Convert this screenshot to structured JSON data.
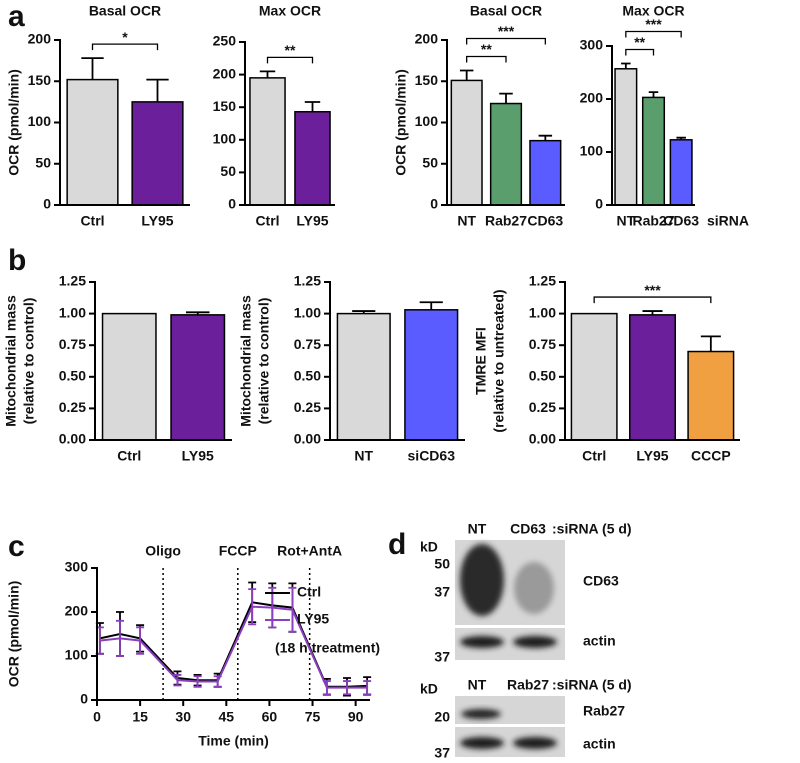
{
  "panel_labels": [
    "a",
    "b",
    "c",
    "d"
  ],
  "chart_data": [
    {
      "type": "bar",
      "title": "Basal OCR",
      "ylabel": "OCR (pmol/min)",
      "categories": [
        "Ctrl",
        "LY95"
      ],
      "values": [
        152,
        125
      ],
      "errors": [
        26,
        27
      ],
      "colors": [
        "#d9d9d9",
        "#6b1f9a"
      ],
      "label_colors": [
        "#111111",
        "#6b1f9a"
      ],
      "ylim": [
        0,
        200
      ],
      "yticks": [
        0,
        50,
        100,
        150,
        200
      ],
      "significance": [
        {
          "text": "*",
          "between": [
            "Ctrl",
            "LY95"
          ]
        }
      ]
    },
    {
      "type": "bar",
      "title": "Max OCR",
      "categories": [
        "Ctrl",
        "LY95"
      ],
      "values": [
        195,
        143
      ],
      "errors": [
        10,
        15
      ],
      "colors": [
        "#d9d9d9",
        "#6b1f9a"
      ],
      "label_colors": [
        "#111111",
        "#6b1f9a"
      ],
      "ylim": [
        0,
        250
      ],
      "yticks": [
        0,
        50,
        100,
        150,
        200,
        250
      ],
      "significance": [
        {
          "text": "**",
          "between": [
            "Ctrl",
            "LY95"
          ]
        }
      ]
    },
    {
      "type": "bar",
      "title": "Basal OCR",
      "ylabel": "OCR (pmol/min)",
      "categories": [
        "NT",
        "Rab27",
        "CD63"
      ],
      "values": [
        151,
        123,
        78
      ],
      "errors": [
        12,
        12,
        6
      ],
      "colors": [
        "#d9d9d9",
        "#5a9e6e",
        "#5a5cff"
      ],
      "label_colors": [
        "#111111",
        "#5a9e6e",
        "#5a5cc8"
      ],
      "ylim": [
        0,
        200
      ],
      "yticks": [
        0,
        50,
        100,
        150,
        200
      ],
      "significance": [
        {
          "text": "**",
          "between": [
            "NT",
            "Rab27"
          ]
        },
        {
          "text": "***",
          "between": [
            "NT",
            "CD63"
          ]
        }
      ]
    },
    {
      "type": "bar",
      "title": "Max OCR",
      "xlabel": "siRNA",
      "categories": [
        "NT",
        "Rab27",
        "CD63"
      ],
      "values": [
        257,
        203,
        123
      ],
      "errors": [
        10,
        10,
        4
      ],
      "colors": [
        "#d9d9d9",
        "#5a9e6e",
        "#5a5cff"
      ],
      "label_colors": [
        "#111111",
        "#5a9e6e",
        "#5a5cc8"
      ],
      "ylim": [
        0,
        300
      ],
      "yticks": [
        0,
        100,
        200,
        300
      ],
      "significance": [
        {
          "text": "**",
          "between": [
            "NT",
            "Rab27"
          ]
        },
        {
          "text": "***",
          "between": [
            "NT",
            "CD63"
          ]
        }
      ]
    },
    {
      "type": "bar",
      "ylabel": [
        "Mitochondrial mass",
        "(relative to control)"
      ],
      "categories": [
        "Ctrl",
        "LY95"
      ],
      "values": [
        1.0,
        0.99
      ],
      "errors": [
        null,
        0.02
      ],
      "colors": [
        "#d9d9d9",
        "#6b1f9a"
      ],
      "label_colors": [
        "#111111",
        "#6b1f9a"
      ],
      "ylim": [
        0,
        1.25
      ],
      "yticks": [
        {
          "value": 0,
          "label": "0.00"
        },
        0.25,
        {
          "value": 0.5,
          "label": "0.50"
        },
        0.75,
        {
          "value": 1,
          "label": "1.00"
        },
        1.25
      ],
      "significance": []
    },
    {
      "type": "bar",
      "ylabel": [
        "Mitochondrial mass",
        "(relative to control)"
      ],
      "categories": [
        "NT",
        "siCD63"
      ],
      "values": [
        1.0,
        1.03
      ],
      "errors": [
        0.02,
        0.06
      ],
      "colors": [
        "#d9d9d9",
        "#5a5cff"
      ],
      "label_colors": [
        "#111111",
        "#5a5cff"
      ],
      "ylim": [
        0,
        1.25
      ],
      "yticks": [
        {
          "value": 0,
          "label": "0.00"
        },
        0.25,
        {
          "value": 0.5,
          "label": "0.50"
        },
        0.75,
        {
          "value": 1,
          "label": "1.00"
        },
        1.25
      ],
      "significance": []
    },
    {
      "type": "bar",
      "ylabel": [
        "TMRE MFI",
        "(relative to untreated)"
      ],
      "categories": [
        "Ctrl",
        "LY95",
        "CCCP"
      ],
      "values": [
        1.0,
        0.99,
        0.7
      ],
      "errors": [
        null,
        0.03,
        0.12
      ],
      "colors": [
        "#d9d9d9",
        "#6b1f9a",
        "#f0a040"
      ],
      "label_colors": [
        "#111111",
        "#6b1f9a",
        "#f0a040"
      ],
      "ylim": [
        0,
        1.25
      ],
      "yticks": [
        {
          "value": 0,
          "label": "0.00"
        },
        0.25,
        {
          "value": 0.5,
          "label": "0.50"
        },
        0.75,
        {
          "value": 1,
          "label": "1.00"
        },
        1.25
      ],
      "significance": [
        {
          "text": "***",
          "between": [
            "Ctrl",
            "CCCP"
          ]
        }
      ]
    },
    {
      "type": "line",
      "ylabel": "OCR (pmol/min)",
      "xlabel": "Time (min)",
      "x": [
        1,
        8,
        15,
        28,
        35,
        42,
        54,
        61,
        68,
        80,
        87,
        94
      ],
      "series": [
        {
          "name": "Ctrl",
          "color": "#000000",
          "values": [
            140,
            150,
            140,
            50,
            45,
            45,
            222,
            215,
            210,
            30,
            30,
            32
          ],
          "errors": [
            35,
            50,
            30,
            15,
            12,
            15,
            45,
            50,
            55,
            18,
            20,
            20
          ]
        },
        {
          "name": "LY95",
          "color": "#8b3fc0",
          "values": [
            135,
            140,
            135,
            45,
            42,
            42,
            212,
            210,
            205,
            28,
            28,
            28
          ],
          "errors": [
            30,
            40,
            30,
            12,
            12,
            12,
            40,
            45,
            50,
            15,
            15,
            15
          ]
        }
      ],
      "legend": "upper right",
      "legend_note": "(18 h treatment)",
      "annotations": [
        {
          "text": "Oligo",
          "x": 23
        },
        {
          "text": "FCCP",
          "x": 49
        },
        {
          "text": "Rot+AntA",
          "x": 74
        }
      ],
      "xlim": [
        0,
        95
      ],
      "xticks": [
        0,
        15,
        30,
        45,
        60,
        75,
        90
      ],
      "ylim": [
        0,
        300
      ],
      "yticks": [
        0,
        100,
        200,
        300
      ]
    }
  ],
  "blots": [
    {
      "kd": "kD",
      "lanes": [
        "NT",
        "CD63"
      ],
      "condition": ":siRNA (5 d)",
      "markers": [
        "50",
        "37",
        "37"
      ],
      "targets": [
        "CD63",
        "actin"
      ]
    },
    {
      "kd": "kD",
      "lanes": [
        "NT",
        "Rab27"
      ],
      "condition": ":siRNA (5 d)",
      "markers": [
        "20",
        "37"
      ],
      "targets": [
        "Rab27",
        "actin"
      ]
    }
  ]
}
